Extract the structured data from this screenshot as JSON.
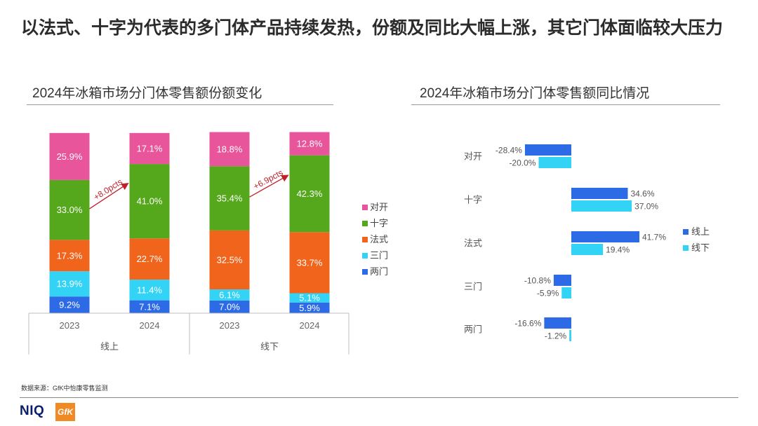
{
  "page": {
    "title": "以法式、十字为代表的多门体产品持续发热，份额及同比大幅上涨，其它门体面临较大压力",
    "source": "数据来源：GfK中怡康零售监测",
    "logo_niq": "NIQ",
    "logo_gfk": "GfK"
  },
  "colors": {
    "对开": "#e8559b",
    "十字": "#55a81c",
    "法式": "#f0641c",
    "三门": "#33d3f5",
    "两门": "#2d6ae6",
    "annotation": "#c0202a"
  },
  "chart_data": [
    {
      "type": "bar",
      "stacked": true,
      "title": "2024年冰箱市场分门体零售额份额变化",
      "categories": [
        "2023",
        "2024",
        "2023",
        "2024"
      ],
      "groups": [
        {
          "label": "线上",
          "categories": [
            "2023",
            "2024"
          ]
        },
        {
          "label": "线下",
          "categories": [
            "2023",
            "2024"
          ]
        }
      ],
      "series": [
        {
          "name": "两门",
          "values": [
            9.2,
            7.1,
            7.0,
            5.9
          ],
          "labels": [
            "9.2%",
            "7.1%",
            "7.0%",
            "5.9%"
          ]
        },
        {
          "name": "三门",
          "values": [
            13.9,
            11.4,
            6.1,
            5.1
          ],
          "labels": [
            "13.9%",
            "11.4%",
            "6.1%",
            "5.1%"
          ]
        },
        {
          "name": "法式",
          "values": [
            17.3,
            22.7,
            32.5,
            33.7
          ],
          "labels": [
            "17.3%",
            "22.7%",
            "32.5%",
            "33.7%"
          ]
        },
        {
          "name": "十字",
          "values": [
            33.0,
            41.0,
            35.4,
            42.3
          ],
          "labels": [
            "33.0%",
            "41.0%",
            "35.4%",
            "42.3%"
          ]
        },
        {
          "name": "对开",
          "values": [
            25.9,
            17.1,
            18.8,
            12.8
          ],
          "labels": [
            "25.9%",
            "17.1%",
            "18.8%",
            "12.8%"
          ]
        }
      ],
      "legend_order": [
        "对开",
        "十字",
        "法式",
        "三门",
        "两门"
      ],
      "legend_position": "right",
      "annotations": [
        {
          "text": "+8.0pcts",
          "from_category": 0,
          "to_category": 1,
          "series": "十字"
        },
        {
          "text": "+6.9pcts",
          "from_category": 2,
          "to_category": 3,
          "series": "十字"
        }
      ],
      "ylim": [
        0,
        100
      ]
    },
    {
      "type": "bar",
      "orientation": "horizontal",
      "title": "2024年冰箱市场分门体零售额同比情况",
      "categories": [
        "对开",
        "十字",
        "法式",
        "三门",
        "两门"
      ],
      "series": [
        {
          "name": "线上",
          "values": [
            -28.4,
            34.6,
            41.7,
            -10.8,
            -16.6
          ],
          "labels": [
            "-28.4%",
            "34.6%",
            "41.7%",
            "-10.8%",
            "-16.6%"
          ]
        },
        {
          "name": "线下",
          "values": [
            -20.0,
            37.0,
            19.4,
            -5.9,
            -1.2
          ],
          "labels": [
            "-20.0%",
            "37.0%",
            "19.4%",
            "-5.9%",
            "-1.2%"
          ]
        }
      ],
      "legend_position": "right",
      "xlim": [
        -30,
        45
      ]
    }
  ]
}
